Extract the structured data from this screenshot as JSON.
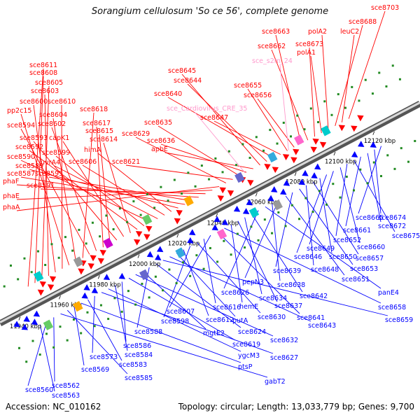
{
  "title": "Sorangium cellulosum 'So ce 56', complete genome",
  "footer": {
    "accession": "Accession: NC_010162",
    "stats": "Topology: circular; Length: 13,033,779 bp; Genes: 9,700"
  },
  "colors": {
    "forward": "#ff0000",
    "reverse": "#0000ff",
    "rna": "#ff99cc",
    "backbone": "#888888"
  },
  "ticks": [
    "11940 kbp",
    "11960 kbp",
    "11980 kbp",
    "12000 kbp",
    "12020 kbp",
    "12040 kbp",
    "12060 kbp",
    "12080 kbp",
    "12100 kbp",
    "12120 kbp"
  ],
  "forward_labels": [
    "sce8611",
    "sce8608",
    "sce8605",
    "sce8603",
    "sce8600",
    "sce8610",
    "pp2c15",
    "sce8604",
    "sce8618",
    "sce8594",
    "sce8602",
    "sce8617",
    "sce8615",
    "sce8593",
    "capK1",
    "sce8614",
    "sce8592",
    "sce8599",
    "sce8590",
    "uvrA4",
    "sce8606",
    "himA",
    "sce8589",
    "sce8587",
    "sce8595",
    "phaF",
    "sce8591",
    "phaE",
    "phaA",
    "sce8629",
    "sce8621",
    "sce8635",
    "sce8636",
    "apbE",
    "sce8645",
    "sce8644",
    "sce8640",
    "sce8647",
    "sce8655",
    "sce8656",
    "sce8663",
    "sce8662",
    "sce8673",
    "polA1",
    "polA2",
    "sce8688",
    "leuC2",
    "sce8703"
  ],
  "rna_labels": [
    "sce_Cardiovirus_CRE_35",
    "sce_s2m_24"
  ],
  "reverse_labels": [
    "sce8665",
    "sce8674",
    "sce8672",
    "sce8661",
    "sce8675",
    "sce8652",
    "sce8660",
    "sce8649",
    "sce8646",
    "sce8650",
    "sce8657",
    "sce8648",
    "sce8653",
    "sce8639",
    "sce8651",
    "pepN3",
    "sce8638",
    "panE4",
    "sce8626",
    "sce8642",
    "sce8634",
    "sce8637",
    "hemE",
    "sce8658",
    "sce8641",
    "sce8607",
    "sce8616",
    "sce8630",
    "sce8598",
    "sce8612",
    "putA",
    "sce8643",
    "sce8659",
    "sce8624",
    "sce8588",
    "mgtE2",
    "sce8632",
    "sce8619",
    "sce8586",
    "sce8584",
    "ygcM3",
    "sce8627",
    "sce8573",
    "sce8583",
    "ptsP",
    "sce8569",
    "sce8585",
    "gabT2",
    "sce8562",
    "sce8560",
    "sce8563"
  ]
}
